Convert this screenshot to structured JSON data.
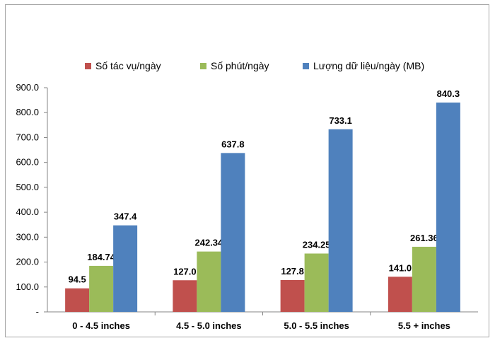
{
  "chart_data": {
    "type": "bar",
    "categories": [
      "0 - 4.5 inches",
      "4.5 - 5.0 inches",
      "5.0 - 5.5 inches",
      "5.5 + inches"
    ],
    "series": [
      {
        "name": "Số tác vụ/ngày",
        "color": "#c0504d",
        "values": [
          94.5,
          127.0,
          127.8,
          141.0
        ],
        "labels": [
          "94.5",
          "127.0",
          "127.8",
          "141.0"
        ]
      },
      {
        "name": "Số phút/ngày",
        "color": "#9bbb59",
        "values": [
          184.74,
          242.34,
          234.25,
          261.36
        ],
        "labels": [
          "184.74",
          "242.34",
          "234.25",
          "261.36"
        ]
      },
      {
        "name": "Lượng dữ liệu/ngày (MB)",
        "color": "#4f81bd",
        "values": [
          347.4,
          637.8,
          733.1,
          840.3
        ],
        "labels": [
          "347.4",
          "637.8",
          "733.1",
          "840.3"
        ]
      }
    ],
    "y_ticks": [
      "-",
      "100.0",
      "200.0",
      "300.0",
      "400.0",
      "500.0",
      "600.0",
      "700.0",
      "800.0",
      "900.0"
    ],
    "ylim": [
      0,
      900
    ],
    "grid": false,
    "legend_position": "top"
  }
}
